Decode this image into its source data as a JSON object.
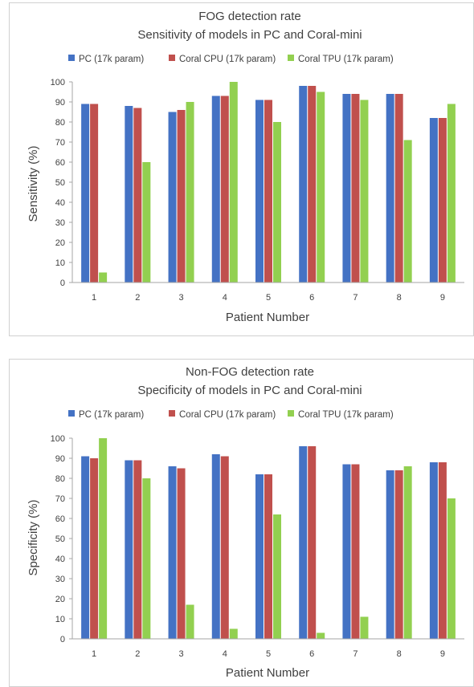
{
  "colors": {
    "pc": "#4472C4",
    "coral_cpu": "#C0504D",
    "coral_tpu": "#92D050",
    "axis": "#a6a6a6",
    "text": "#404040"
  },
  "chart_data": [
    {
      "type": "bar",
      "title": "FOG detection rate",
      "subtitle": "Sensitivity of models in PC and Coral-mini",
      "xlabel": "Patient Number",
      "ylabel": "Sensitivity (%)",
      "ylim": [
        0,
        100
      ],
      "yticks": [
        0,
        10,
        20,
        30,
        40,
        50,
        60,
        70,
        80,
        90,
        100
      ],
      "grid": false,
      "legend_position": "top",
      "categories": [
        "1",
        "2",
        "3",
        "4",
        "5",
        "6",
        "7",
        "8",
        "9"
      ],
      "series": [
        {
          "name": "PC (17k param)",
          "color": "#4472C4",
          "values": [
            89,
            88,
            85,
            93,
            91,
            98,
            94,
            94,
            82
          ]
        },
        {
          "name": "Coral CPU (17k param)",
          "color": "#C0504D",
          "values": [
            89,
            87,
            86,
            93,
            91,
            98,
            94,
            94,
            82
          ]
        },
        {
          "name": "Coral TPU (17k param)",
          "color": "#92D050",
          "values": [
            5,
            60,
            90,
            100,
            80,
            95,
            91,
            71,
            89
          ]
        }
      ]
    },
    {
      "type": "bar",
      "title": "Non-FOG detection rate",
      "subtitle": "Specificity of models in PC and Coral-mini",
      "xlabel": "Patient Number",
      "ylabel": "Specificity  (%)",
      "ylim": [
        0,
        100
      ],
      "yticks": [
        0,
        10,
        20,
        30,
        40,
        50,
        60,
        70,
        80,
        90,
        100
      ],
      "grid": false,
      "legend_position": "top",
      "categories": [
        "1",
        "2",
        "3",
        "4",
        "5",
        "6",
        "7",
        "8",
        "9"
      ],
      "series": [
        {
          "name": "PC (17k param)",
          "color": "#4472C4",
          "values": [
            91,
            89,
            86,
            92,
            82,
            96,
            87,
            84,
            88
          ]
        },
        {
          "name": "Coral CPU (17k param)",
          "color": "#C0504D",
          "values": [
            90,
            89,
            85,
            91,
            82,
            96,
            87,
            84,
            88
          ]
        },
        {
          "name": "Coral TPU (17k param)",
          "color": "#92D050",
          "values": [
            100,
            80,
            17,
            5,
            62,
            3,
            11,
            86,
            70
          ]
        }
      ]
    }
  ]
}
